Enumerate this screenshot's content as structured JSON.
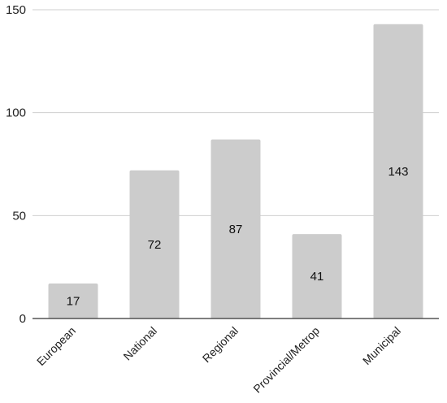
{
  "chart_data": {
    "type": "bar",
    "title": "",
    "xlabel": "",
    "ylabel": "",
    "categories": [
      "European",
      "National",
      "Regional",
      "Provincial/Metrop",
      "Municipal"
    ],
    "values": [
      17,
      72,
      87,
      41,
      143
    ],
    "data_labels": [
      "17",
      "72",
      "87",
      "41",
      "143"
    ],
    "ylim": [
      0,
      150
    ],
    "yticks": [
      0,
      50,
      100,
      150
    ],
    "ytick_labels": [
      "0",
      "50",
      "100",
      "150"
    ],
    "grid": true,
    "legend": "none",
    "colors": {
      "bar": "#cccccc",
      "grid": "#cfcfcf",
      "axis": "#333333",
      "text": "#222222"
    }
  }
}
